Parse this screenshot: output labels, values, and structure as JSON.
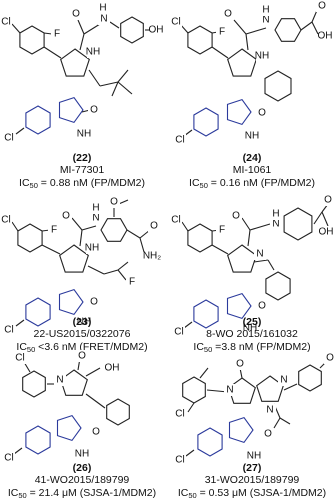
{
  "structures": [
    {
      "number": "(22)",
      "name": "MI-77301",
      "ic50": {
        "prefix": "IC",
        "sub": "50",
        "rest": " = 0.88 nM (FP/MDM2)"
      },
      "atoms": [
        "Cl",
        "F",
        "O",
        "H",
        "N",
        "OH",
        "NH",
        "Cl",
        "NH",
        "O"
      ]
    },
    {
      "number": "(24)",
      "name": "MI-1061",
      "ic50": {
        "prefix": "IC",
        "sub": "50",
        "rest": " = 0.16 nM (FP/MDM2)"
      },
      "atoms": [
        "Cl",
        "F",
        "O",
        "N",
        "H",
        "O",
        "OH",
        "NH",
        "Cl",
        "NH",
        "O"
      ]
    },
    {
      "number": "(23)",
      "name": "22-US2015/0322076",
      "ic50": {
        "prefix": "IC",
        "sub": "50",
        "rest": " <3.6 nM (FRET/MDM2)"
      },
      "atoms": [
        "Cl",
        "F",
        "O",
        "O",
        "N",
        "H",
        "O",
        "NH₂",
        "NH",
        "F",
        "Cl",
        "NH",
        "O"
      ]
    },
    {
      "number": "(25)",
      "name": "8-WO 2015/161032",
      "ic50": {
        "prefix": "IC",
        "sub": "50",
        "rest": " =3.8 nM (FP/MDM2)"
      },
      "atoms": [
        "Cl",
        "F",
        "O",
        "N",
        "H",
        "O",
        "OH",
        "N",
        "Cl",
        "NH",
        "O"
      ]
    },
    {
      "number": "(26)",
      "name": "41-WO2015/189799",
      "ic50": {
        "prefix": "IC",
        "sub": "50",
        "rest": " = 21.4 μM (SJSA-1/MDM2)"
      },
      "atoms": [
        "O",
        "OH",
        "Cl",
        "N",
        "Cl",
        "NH",
        "O"
      ]
    },
    {
      "number": "(27)",
      "name": "31-WO2015/189799",
      "ic50": {
        "prefix": "IC",
        "sub": "50",
        "rest": " = 0.53 μM (SJSA-1/MDM2)"
      },
      "atoms": [
        "Cl",
        "O",
        "N",
        "N",
        "N",
        "O",
        "Cl",
        "NH",
        "O"
      ]
    }
  ]
}
